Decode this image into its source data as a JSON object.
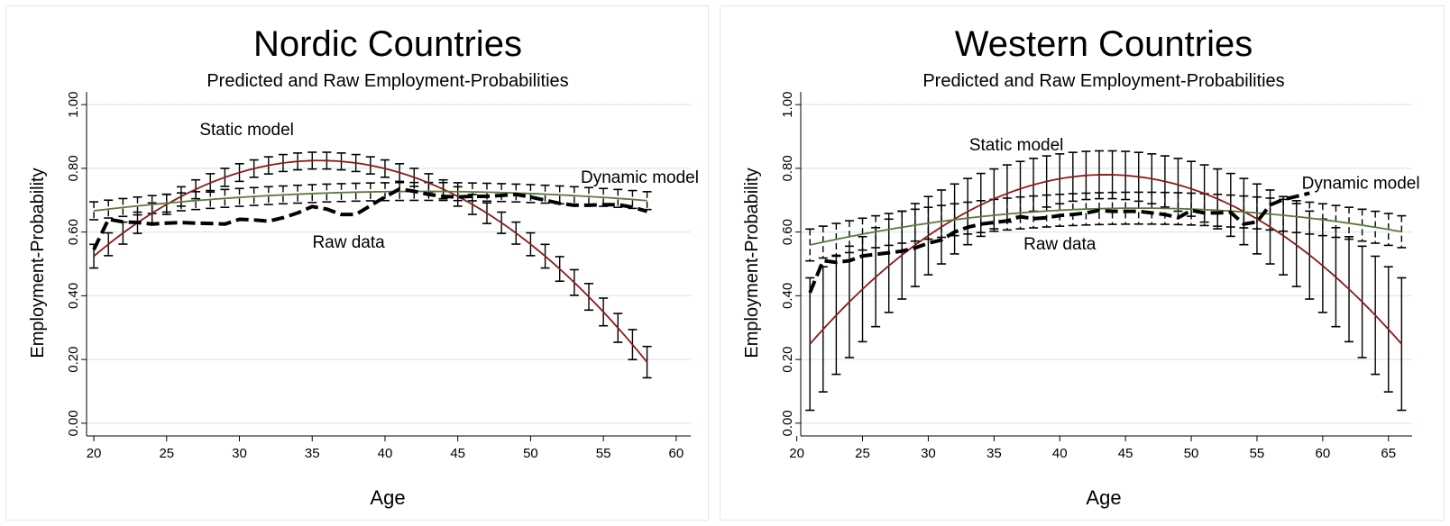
{
  "chart_data": [
    {
      "type": "line",
      "title": "Nordic Countries",
      "subtitle": "Predicted and Raw Employment-Probabilities",
      "xlabel": "Age",
      "ylabel": "Employment-Probability",
      "xlim": [
        19.5,
        61
      ],
      "ylim": [
        -0.04,
        1.04
      ],
      "xticks": [
        20,
        25,
        30,
        35,
        40,
        45,
        50,
        55,
        60
      ],
      "xtick_labels": [
        "20",
        "25",
        "30",
        "35",
        "40",
        "45",
        "50",
        "55",
        "60"
      ],
      "yticks": [
        0,
        0.2,
        0.4,
        0.6,
        0.8,
        1.0
      ],
      "ytick_labels": [
        "0.00",
        "0.20",
        "0.40",
        "0.60",
        "0.80",
        "1.00"
      ],
      "grid": "horizontal",
      "colors": {
        "static": "#8b1a1a",
        "dynamic": "#5a7a3a",
        "raw": "#000000",
        "grid": "#dbe9ec"
      },
      "annotations": [
        {
          "text": "Static model",
          "x": 30.5,
          "y": 0.918
        },
        {
          "text": "Dynamic model",
          "x": 57.5,
          "y": 0.768
        },
        {
          "text": "Raw data",
          "x": 37.5,
          "y": 0.565
        }
      ],
      "static": {
        "x_min": 20,
        "x_max": 58,
        "a": 0.8245,
        "peak": 35.5,
        "k": 0.00125,
        "err_frac": 0.036
      },
      "dynamic": {
        "x_min": 20,
        "x_max": 58,
        "a": 0.7275,
        "peak": 42.5,
        "k": 0.00012,
        "err_halfwidth": 0.028
      },
      "raw_x": [
        20,
        21,
        22,
        23,
        24,
        25,
        26,
        27,
        28,
        29,
        30,
        31,
        32,
        33,
        34,
        35,
        36,
        37,
        38,
        39,
        40,
        41,
        42,
        43,
        44,
        45,
        46,
        47,
        48,
        49,
        50,
        51,
        52,
        53,
        54,
        55,
        56,
        57,
        58
      ],
      "raw_y": [
        0.545,
        0.64,
        0.632,
        0.63,
        0.625,
        0.628,
        0.63,
        0.628,
        0.627,
        0.625,
        0.64,
        0.638,
        0.634,
        0.645,
        0.66,
        0.68,
        0.672,
        0.655,
        0.655,
        0.683,
        0.71,
        0.735,
        0.728,
        0.718,
        0.712,
        0.71,
        0.712,
        0.712,
        0.715,
        0.718,
        0.71,
        0.7,
        0.69,
        0.684,
        0.684,
        0.686,
        0.686,
        0.678,
        0.665
      ]
    },
    {
      "type": "line",
      "title": "Western Countries",
      "subtitle": "Predicted and Raw Employment-Probabilities",
      "xlabel": "Age",
      "ylabel": "Employment-Probability",
      "xlim": [
        20.3,
        66.8
      ],
      "ylim": [
        -0.04,
        1.04
      ],
      "xticks": [
        20,
        25,
        30,
        35,
        40,
        45,
        50,
        55,
        60,
        65
      ],
      "xtick_labels": [
        "20",
        "25",
        "30",
        "35",
        "40",
        "45",
        "50",
        "55",
        "60",
        "65"
      ],
      "yticks": [
        0,
        0.2,
        0.4,
        0.6,
        0.8,
        1.0
      ],
      "ytick_labels": [
        "0.00",
        "0.20",
        "0.40",
        "0.60",
        "0.80",
        "1.00"
      ],
      "grid": "horizontal",
      "colors": {
        "static": "#8b1a1a",
        "dynamic": "#5a7a3a",
        "raw": "#000000",
        "grid": "#dbe9ec"
      },
      "annotations": [
        {
          "text": "Static model",
          "x": 36.7,
          "y": 0.87
        },
        {
          "text": "Dynamic model",
          "x": 62.9,
          "y": 0.75
        },
        {
          "text": "Raw data",
          "x": 40,
          "y": 0.56
        }
      ],
      "static": {
        "x_min": 21,
        "x_max": 66,
        "a": 0.78,
        "peak": 43.5,
        "k": 0.00105,
        "err_frac": 0.25
      },
      "dynamic": {
        "x_min": 21,
        "x_max": 66,
        "a": 0.675,
        "peak": 46,
        "k": 0.000185,
        "err_halfwidth": 0.05
      },
      "raw_x": [
        21,
        22,
        23,
        24,
        25,
        26,
        27,
        28,
        29,
        30,
        31,
        32,
        33,
        34,
        35,
        36,
        37,
        38,
        39,
        40,
        41,
        42,
        43,
        44,
        45,
        46,
        47,
        48,
        49,
        50,
        51,
        52,
        53,
        54,
        55,
        56,
        57,
        58,
        59
      ],
      "raw_y": [
        0.41,
        0.51,
        0.505,
        0.51,
        0.525,
        0.53,
        0.535,
        0.54,
        0.55,
        0.565,
        0.575,
        0.6,
        0.615,
        0.625,
        0.63,
        0.635,
        0.648,
        0.642,
        0.645,
        0.652,
        0.655,
        0.66,
        0.668,
        0.665,
        0.665,
        0.665,
        0.66,
        0.655,
        0.645,
        0.668,
        0.66,
        0.66,
        0.662,
        0.625,
        0.632,
        0.685,
        0.702,
        0.712,
        0.722
      ]
    }
  ]
}
